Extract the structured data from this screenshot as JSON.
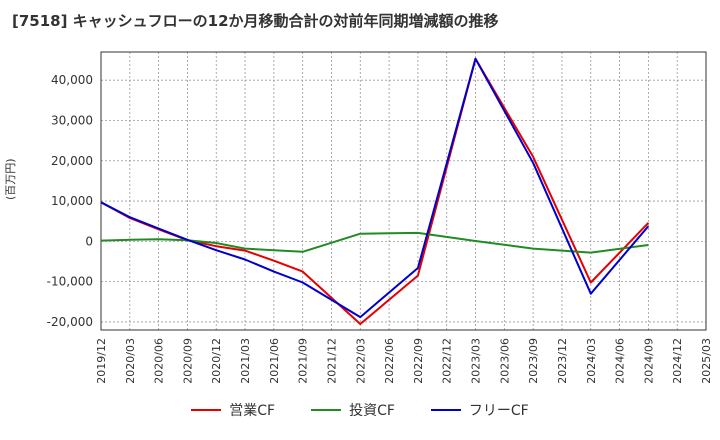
{
  "chart_data": {
    "type": "line",
    "title": "[7518]  キャッシュフローの12か月移動合計の対前年同期増減額の推移",
    "ylabel": "(百万円)",
    "xlabel": "",
    "ylim": [
      -22000,
      47000
    ],
    "yticks": [
      -20000,
      -10000,
      0,
      10000,
      20000,
      30000,
      40000
    ],
    "ytick_labels": [
      "-20,000",
      "-10,000",
      "0",
      "10,000",
      "20,000",
      "30,000",
      "40,000"
    ],
    "categories": [
      "2019/12",
      "2020/03",
      "2020/06",
      "2020/09",
      "2020/12",
      "2021/03",
      "2021/06",
      "2021/09",
      "2021/12",
      "2022/03",
      "2022/06",
      "2022/09",
      "2022/12",
      "2023/03",
      "2023/06",
      "2023/09",
      "2023/12",
      "2024/03",
      "2024/06",
      "2024/09",
      "2024/12",
      "2025/03"
    ],
    "series": [
      {
        "name": "営業CF",
        "color": "#e60000",
        "values": [
          9700,
          5800,
          3000,
          300,
          -1200,
          -2300,
          -4800,
          -7500,
          null,
          -20500,
          null,
          -8500,
          null,
          45300,
          null,
          21000,
          null,
          -10200,
          null,
          4600,
          null,
          null
        ]
      },
      {
        "name": "投資CF",
        "color": "#228b22",
        "values": [
          200,
          400,
          500,
          300,
          -400,
          -1800,
          -2200,
          -2600,
          null,
          1900,
          null,
          2100,
          null,
          100,
          null,
          -1800,
          null,
          -2800,
          null,
          -900,
          null,
          null
        ]
      },
      {
        "name": "フリーCF",
        "color": "#0000cc",
        "values": [
          9700,
          6000,
          3200,
          400,
          -2200,
          -4500,
          -7500,
          -10200,
          null,
          -18800,
          null,
          -6600,
          null,
          45300,
          null,
          19500,
          null,
          -13000,
          null,
          3800,
          null,
          null
        ]
      }
    ],
    "grid": true,
    "legend_position": "bottom"
  }
}
